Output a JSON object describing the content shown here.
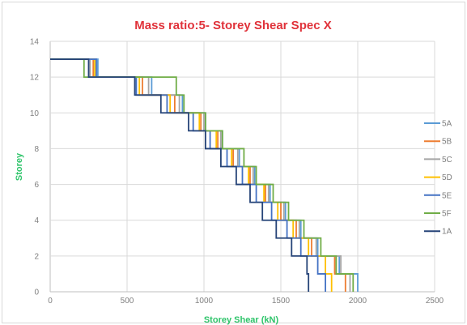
{
  "chart_data": {
    "type": "line",
    "title": "Mass ratio:5- Storey Shear Spec X",
    "xlabel": "Storey Shear (kN)",
    "ylabel": "Storey",
    "xlim": [
      0,
      2500
    ],
    "ylim": [
      0,
      14
    ],
    "xticks": [
      0,
      500,
      1000,
      1500,
      2000,
      2500
    ],
    "yticks": [
      0,
      2,
      4,
      6,
      8,
      10,
      12,
      14
    ],
    "grid": true,
    "legend_position": "right",
    "storeys": [
      13,
      12,
      11,
      10,
      9,
      8,
      7,
      6,
      5,
      4,
      3,
      2,
      1
    ],
    "series": [
      {
        "name": "5A",
        "color": "#5b9bd5",
        "shear": [
          310,
          660,
          860,
          1010,
          1120,
          1230,
          1330,
          1430,
          1530,
          1630,
          1740,
          1880,
          2000
        ]
      },
      {
        "name": "5B",
        "color": "#ed7d31",
        "shear": [
          280,
          600,
          810,
          980,
          1090,
          1190,
          1300,
          1400,
          1500,
          1600,
          1700,
          1850,
          1920
        ]
      },
      {
        "name": "5C",
        "color": "#a5a5a5",
        "shear": [
          260,
          640,
          840,
          1000,
          1110,
          1220,
          1320,
          1420,
          1520,
          1620,
          1730,
          1890,
          1950
        ]
      },
      {
        "name": "5D",
        "color": "#ffc000",
        "shear": [
          290,
          580,
          780,
          970,
          1080,
          1180,
          1290,
          1390,
          1480,
          1580,
          1680,
          1790,
          1830
        ]
      },
      {
        "name": "5E",
        "color": "#4472c4",
        "shear": [
          300,
          560,
          760,
          930,
          1040,
          1150,
          1250,
          1340,
          1440,
          1540,
          1630,
          1740,
          1790
        ]
      },
      {
        "name": "5F",
        "color": "#70ad47",
        "shear": [
          220,
          820,
          870,
          1010,
          1120,
          1260,
          1340,
          1450,
          1550,
          1650,
          1760,
          1860,
          1970
        ]
      },
      {
        "name": "1A",
        "color": "#264478",
        "shear": [
          250,
          550,
          720,
          900,
          1010,
          1110,
          1210,
          1300,
          1380,
          1470,
          1570,
          1670,
          1680
        ]
      }
    ]
  }
}
